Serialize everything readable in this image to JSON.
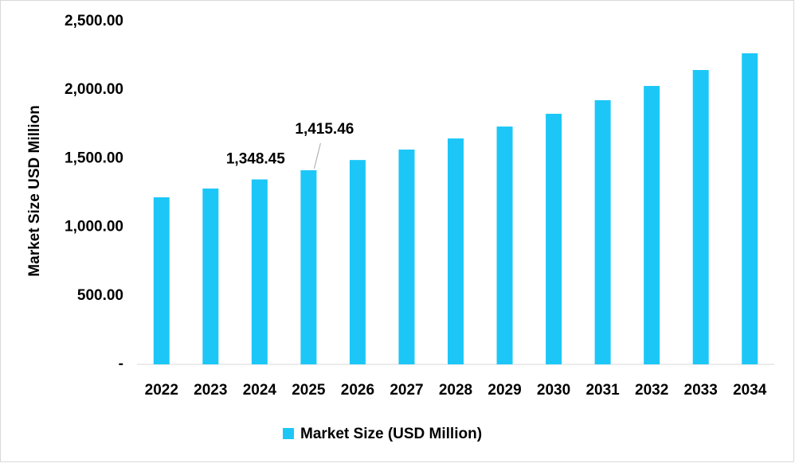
{
  "chart_data": {
    "type": "bar",
    "y_label": "Market Size USD Million",
    "categories": [
      "2022",
      "2023",
      "2024",
      "2025",
      "2026",
      "2027",
      "2028",
      "2029",
      "2030",
      "2031",
      "2032",
      "2033",
      "2034"
    ],
    "series": [
      {
        "name": "Market Size (USD Million)",
        "color": "#1cc7f7",
        "values": [
          1218,
          1282,
          1348.45,
          1415.46,
          1490,
          1566,
          1647,
          1734,
          1827,
          1926,
          2030,
          2146,
          2268
        ],
        "value_labels": [
          null,
          null,
          "1,348.45",
          "1,415.46",
          null,
          null,
          null,
          null,
          null,
          null,
          null,
          null,
          null
        ]
      }
    ],
    "ylim": [
      0,
      2500
    ],
    "yticks": [
      {
        "value": 0,
        "label": "-"
      },
      {
        "value": 500,
        "label": "500.00"
      },
      {
        "value": 1000,
        "label": "1,000.00"
      },
      {
        "value": 1500,
        "label": "1,500.00"
      },
      {
        "value": 2000,
        "label": "2,000.00"
      },
      {
        "value": 2500,
        "label": "2,500.00"
      }
    ],
    "grid": false,
    "legend": "bottom"
  }
}
